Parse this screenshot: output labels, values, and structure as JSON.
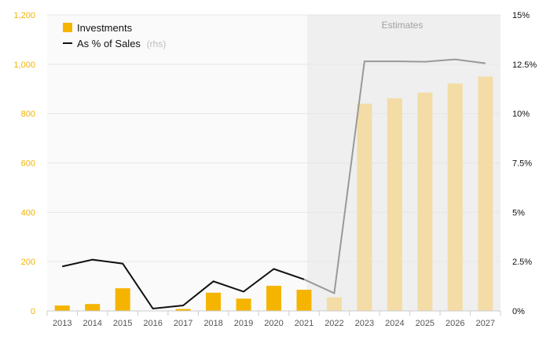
{
  "chart_data": {
    "type": "bar",
    "categories": [
      "2013",
      "2014",
      "2015",
      "2016",
      "2017",
      "2018",
      "2019",
      "2020",
      "2021",
      "2022",
      "2023",
      "2024",
      "2025",
      "2026",
      "2027"
    ],
    "series": [
      {
        "name": "Investments",
        "kind": "bar",
        "axis": "left",
        "values": [
          22,
          28,
          92,
          0,
          8,
          74,
          50,
          102,
          86,
          55,
          840,
          862,
          885,
          922,
          950
        ]
      },
      {
        "name": "As % of Sales",
        "kind": "line",
        "axis": "right",
        "values": [
          2.25,
          2.6,
          2.4,
          0.12,
          0.28,
          1.5,
          0.98,
          2.13,
          1.6,
          0.9,
          12.65,
          12.65,
          12.63,
          12.75,
          12.55
        ]
      }
    ],
    "estimate_start_index": 9,
    "estimates_label": "Estimates",
    "ylim_left": [
      0,
      1200
    ],
    "ylim_right": [
      0,
      15
    ],
    "yticks_left": [
      "0",
      "200",
      "400",
      "600",
      "800",
      "1,000",
      "1,200"
    ],
    "yticks_right": [
      "0%",
      "2.5%",
      "5%",
      "7.5%",
      "10%",
      "12.5%",
      "15%"
    ],
    "legend": {
      "position": "top-left",
      "bar_label": "Investments",
      "line_label": "As % of Sales",
      "line_suffix": "(rhs)"
    },
    "grid": true,
    "colors": {
      "bar": "#f5b400",
      "bar_estimate": "#f3dca6",
      "line": "#111111",
      "line_estimate": "#999999",
      "plot_bg": "#fafafa",
      "estimate_bg": "#efefef",
      "left_axis_text": "#f5b400"
    }
  }
}
